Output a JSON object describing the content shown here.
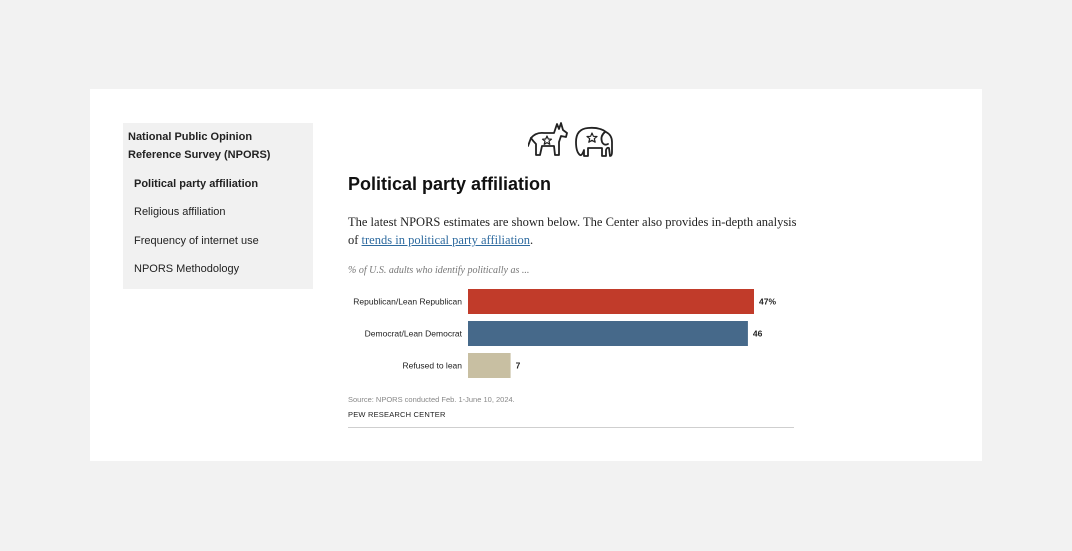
{
  "sidebar": {
    "heading": "National Public Opinion Reference Survey (NPORS)",
    "items": [
      {
        "label": "Political party affiliation",
        "active": true
      },
      {
        "label": "Religious affiliation",
        "active": false
      },
      {
        "label": "Frequency of internet use",
        "active": false
      },
      {
        "label": "NPORS Methodology",
        "active": false
      }
    ]
  },
  "main": {
    "title": "Political party affiliation",
    "intro_text": "The latest NPORS estimates are shown below. The Center also provides in-depth analysis of ",
    "intro_link": "trends in political party affiliation",
    "intro_end": "."
  },
  "chart_data": {
    "type": "bar",
    "orientation": "horizontal",
    "title": "% of U.S. adults who identify politically as ...",
    "categories": [
      "Republican/Lean Republican",
      "Democrat/Lean Democrat",
      "Refused to lean"
    ],
    "values": [
      47,
      46,
      7
    ],
    "value_labels": [
      "47%",
      "46",
      "7"
    ],
    "colors": [
      "#c13b2a",
      "#46698a",
      "#c8bfa2"
    ],
    "xlim": [
      0,
      47
    ]
  },
  "footer": {
    "source": "Source: NPORS conducted Feb. 1-June 10, 2024.",
    "credit": "PEW RESEARCH CENTER"
  },
  "icons": {
    "left": "democrat-donkey-icon",
    "right": "republican-elephant-icon"
  }
}
